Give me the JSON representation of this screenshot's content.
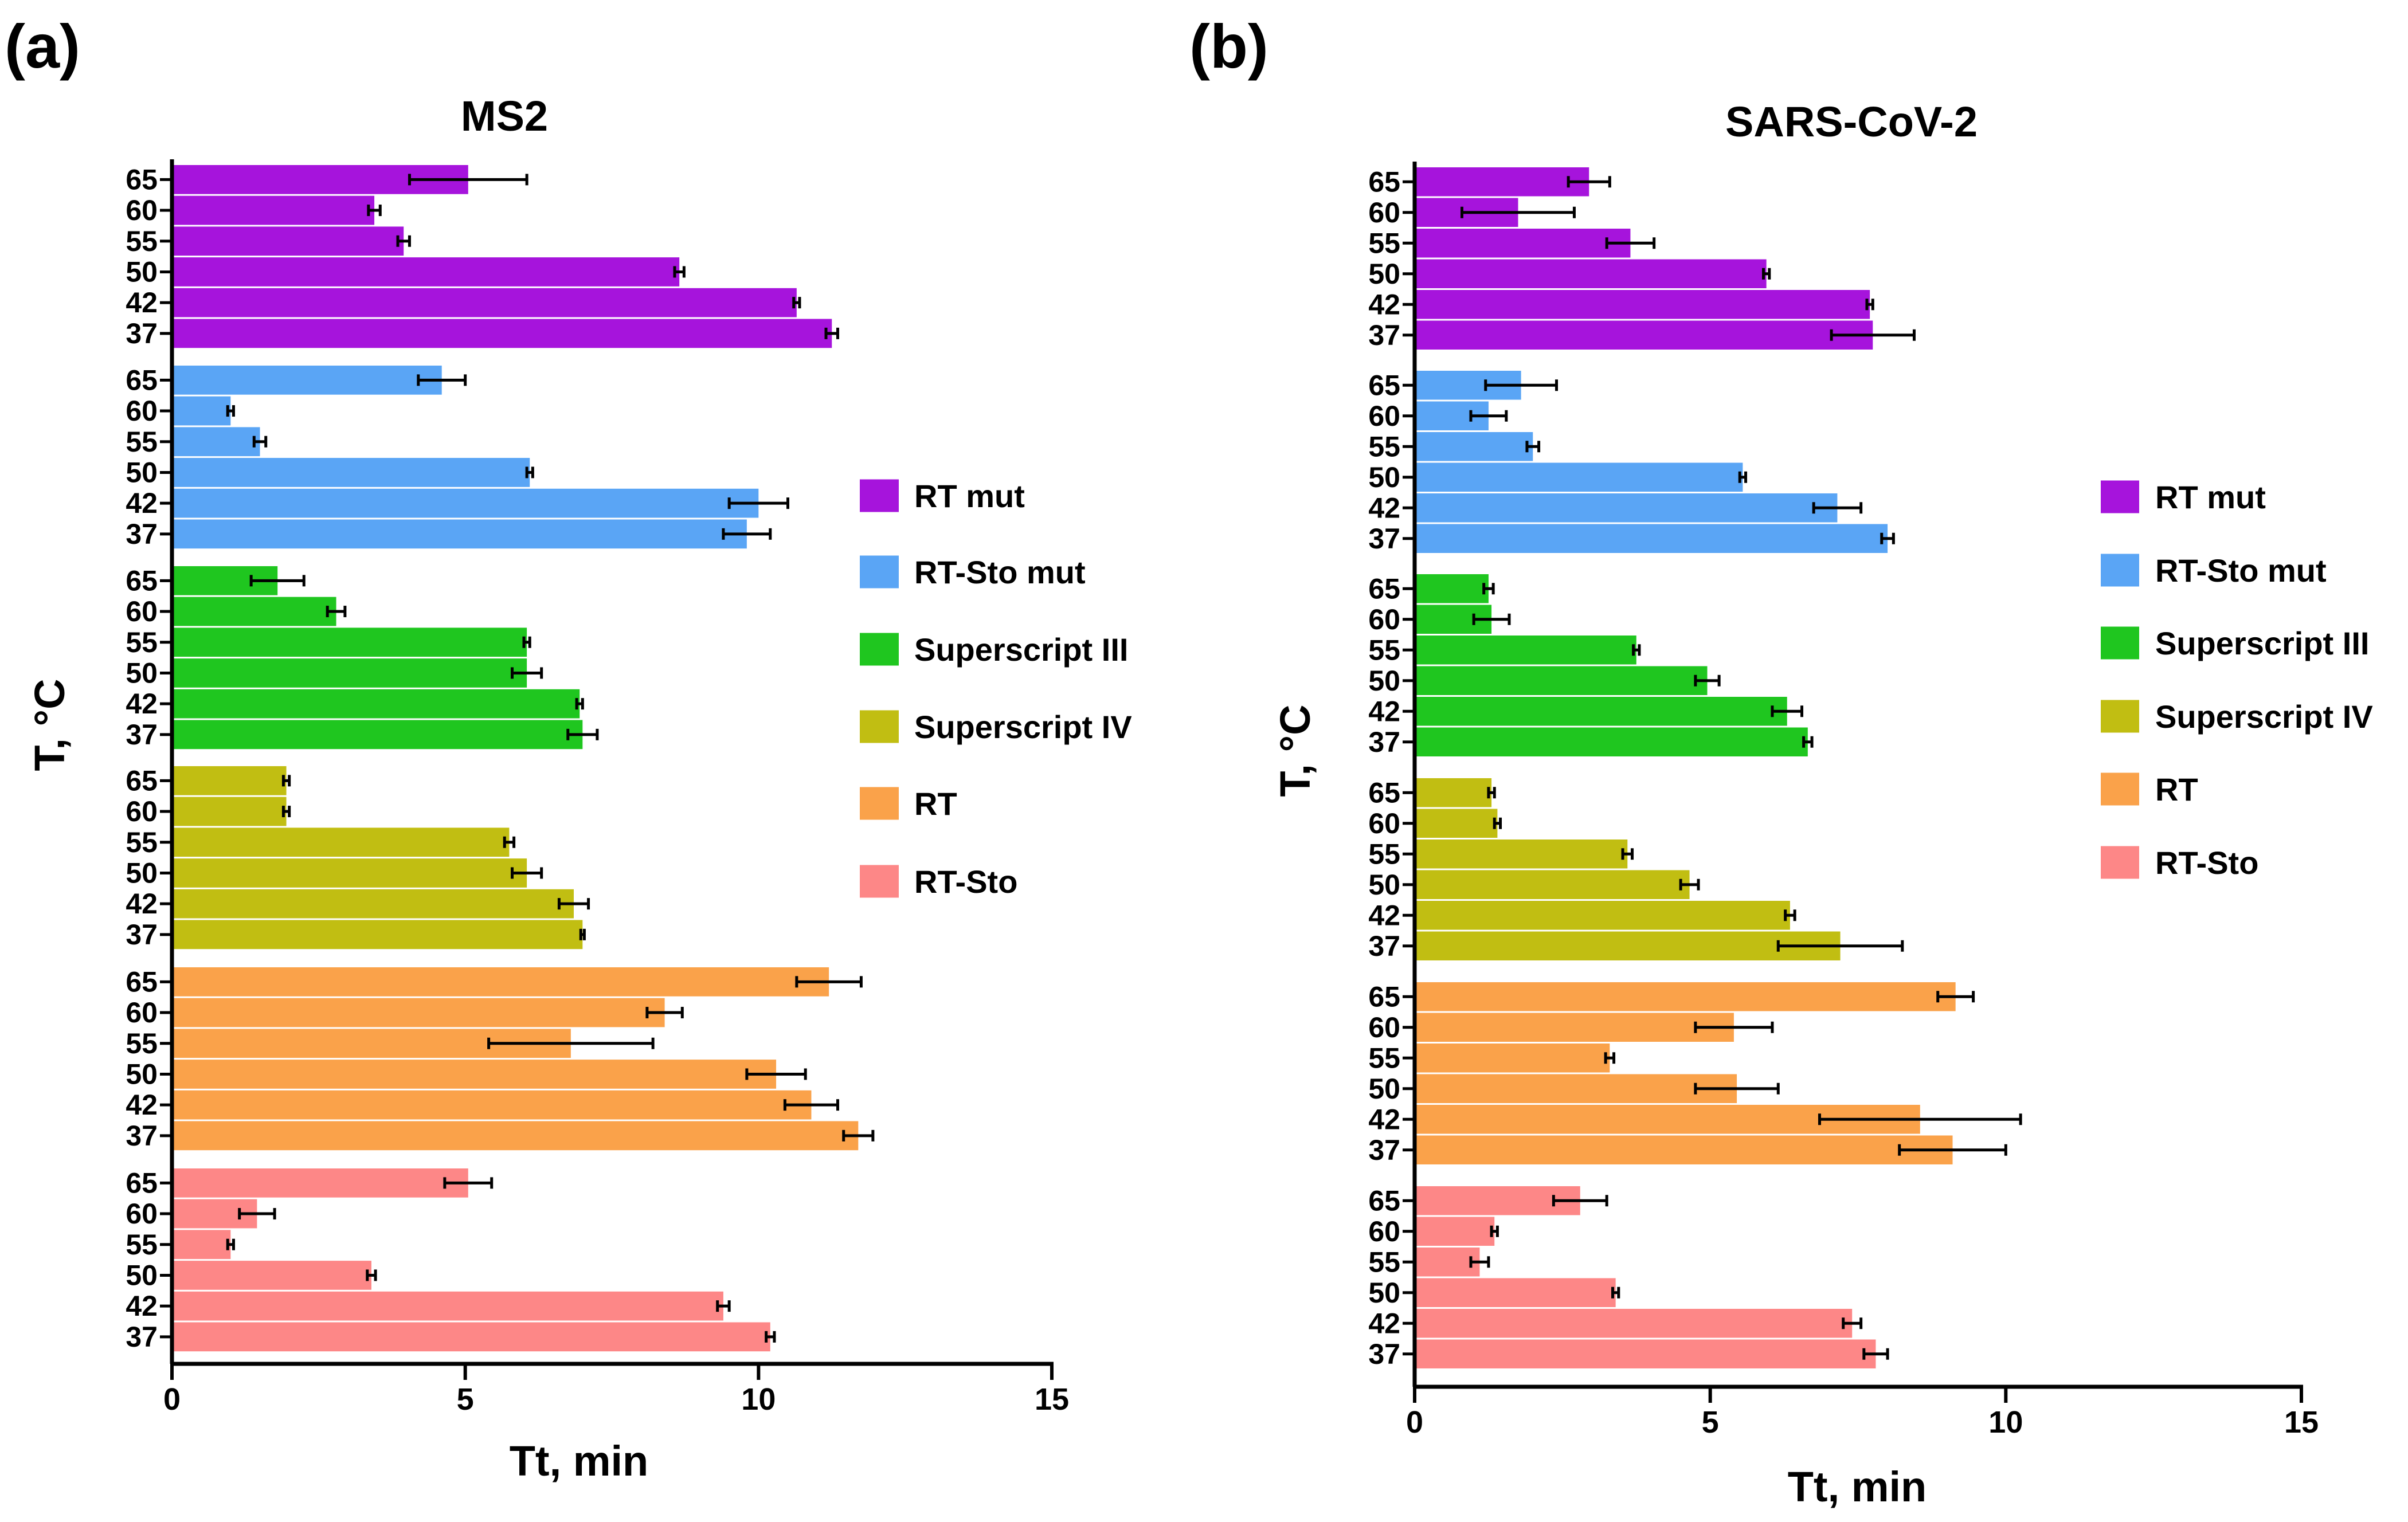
{
  "figure": {
    "panel_labels": [
      "(a)",
      "(b)"
    ],
    "legend": {
      "placement": "right",
      "entries": [
        {
          "name": "RT mut",
          "color": "#A614DC"
        },
        {
          "name": "RT-Sto mut",
          "color": "#5AA5F5"
        },
        {
          "name": "Superscript III",
          "color": "#1FC61F"
        },
        {
          "name": "Superscript IV",
          "color": "#C1BE12"
        },
        {
          "name": "RT",
          "color": "#FAA24A"
        },
        {
          "name": "RT-Sto",
          "color": "#FD8787"
        }
      ]
    }
  },
  "chart_data": [
    {
      "type": "bar",
      "orientation": "horizontal",
      "title": "MS2",
      "xlabel": "Tt, min",
      "ylabel": "T, °C",
      "xlim": [
        0,
        15
      ],
      "xticks": [
        0,
        5,
        10,
        15
      ],
      "grid": false,
      "categories": [
        "65",
        "60",
        "55",
        "50",
        "42",
        "37"
      ],
      "series": [
        {
          "name": "RT mut",
          "color": "#A614DC",
          "values": [
            5.05,
            3.45,
            3.95,
            8.65,
            10.65,
            11.25
          ],
          "errors": [
            1.0,
            0.1,
            0.1,
            0.08,
            0.05,
            0.1
          ]
        },
        {
          "name": "RT-Sto mut",
          "color": "#5AA5F5",
          "values": [
            4.6,
            1.0,
            1.5,
            6.1,
            10.0,
            9.8
          ],
          "errors": [
            0.4,
            0.05,
            0.1,
            0.05,
            0.5,
            0.4
          ]
        },
        {
          "name": "Superscript III",
          "color": "#1FC61F",
          "values": [
            1.8,
            2.8,
            6.05,
            6.05,
            6.95,
            7.0
          ],
          "errors": [
            0.45,
            0.15,
            0.05,
            0.25,
            0.05,
            0.25
          ]
        },
        {
          "name": "Superscript IV",
          "color": "#C1BE12",
          "values": [
            1.95,
            1.95,
            5.75,
            6.05,
            6.85,
            7.0
          ],
          "errors": [
            0.05,
            0.05,
            0.08,
            0.25,
            0.25,
            0.03
          ]
        },
        {
          "name": "RT",
          "color": "#FAA24A",
          "values": [
            11.2,
            8.4,
            6.8,
            10.3,
            10.9,
            11.7
          ],
          "errors": [
            0.55,
            0.3,
            1.4,
            0.5,
            0.45,
            0.25
          ]
        },
        {
          "name": "RT-Sto",
          "color": "#FD8787",
          "values": [
            5.05,
            1.45,
            1.0,
            3.4,
            9.4,
            10.2
          ],
          "errors": [
            0.4,
            0.3,
            0.05,
            0.07,
            0.1,
            0.07
          ]
        }
      ]
    },
    {
      "type": "bar",
      "orientation": "horizontal",
      "title": "SARS-CoV-2",
      "xlabel": "Tt, min",
      "ylabel": "T, °C",
      "xlim": [
        0,
        15
      ],
      "xticks": [
        0,
        5,
        10,
        15
      ],
      "grid": false,
      "categories": [
        "65",
        "60",
        "55",
        "50",
        "42",
        "37"
      ],
      "series": [
        {
          "name": "RT mut",
          "color": "#A614DC",
          "values": [
            2.95,
            1.75,
            3.65,
            5.95,
            7.7,
            7.75
          ],
          "errors": [
            0.35,
            0.95,
            0.4,
            0.05,
            0.05,
            0.7
          ]
        },
        {
          "name": "RT-Sto mut",
          "color": "#5AA5F5",
          "values": [
            1.8,
            1.25,
            2.0,
            5.55,
            7.15,
            8.0
          ],
          "errors": [
            0.6,
            0.3,
            0.1,
            0.05,
            0.4,
            0.1
          ]
        },
        {
          "name": "Superscript III",
          "color": "#1FC61F",
          "values": [
            1.25,
            1.3,
            3.75,
            4.95,
            6.3,
            6.65
          ],
          "errors": [
            0.08,
            0.3,
            0.05,
            0.2,
            0.25,
            0.07
          ]
        },
        {
          "name": "Superscript IV",
          "color": "#C1BE12",
          "values": [
            1.3,
            1.4,
            3.6,
            4.65,
            6.35,
            7.2
          ],
          "errors": [
            0.05,
            0.05,
            0.08,
            0.15,
            0.08,
            1.05
          ]
        },
        {
          "name": "RT",
          "color": "#FAA24A",
          "values": [
            9.15,
            5.4,
            3.3,
            5.45,
            8.55,
            9.1
          ],
          "errors": [
            0.3,
            0.65,
            0.07,
            0.7,
            1.7,
            0.9
          ]
        },
        {
          "name": "RT-Sto",
          "color": "#FD8787",
          "values": [
            2.8,
            1.35,
            1.1,
            3.4,
            7.4,
            7.8
          ],
          "errors": [
            0.45,
            0.05,
            0.15,
            0.05,
            0.15,
            0.2
          ]
        }
      ]
    }
  ]
}
